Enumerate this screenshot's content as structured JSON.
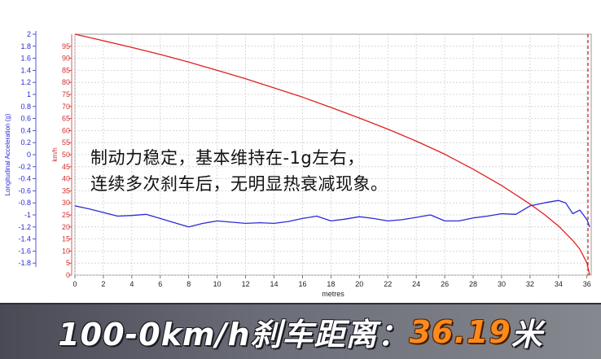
{
  "chart_data": {
    "type": "line",
    "xlabel": "metres",
    "xlim": [
      0,
      36.3
    ],
    "x_ticks": [
      0,
      2,
      4,
      6,
      8,
      10,
      12,
      14,
      16,
      18,
      20,
      22,
      24,
      26,
      28,
      30,
      32,
      34,
      36
    ],
    "left_axis": {
      "label": "Longitudinal Acceleration (g)",
      "ylim": [
        -2,
        2
      ],
      "ticks": [
        "2",
        "1.8",
        "1.6",
        "1.4",
        "1.2",
        "1",
        "0.8",
        "0.6",
        "0.4",
        "0.2",
        "0",
        "-0.2",
        "-0.4",
        "-0.6",
        "-0.8",
        "-1",
        "-1.2",
        "-1.4",
        "-1.6",
        "-1.8"
      ]
    },
    "right_axis": {
      "label": "km/h",
      "ylim": [
        0,
        100
      ],
      "ticks": [
        "95",
        "90",
        "85",
        "80",
        "75",
        "70",
        "65",
        "60",
        "55",
        "50",
        "45",
        "40",
        "35",
        "30",
        "25",
        "20",
        "15",
        "10",
        "5",
        "0"
      ]
    },
    "grid": true,
    "series": [
      {
        "axis": "right",
        "color": "#e02020",
        "x": [
          0,
          2,
          4,
          6,
          8,
          10,
          12,
          14,
          16,
          18,
          20,
          22,
          24,
          26,
          28,
          30,
          32,
          33,
          34,
          35,
          35.5,
          36,
          36.19
        ],
        "y": [
          100,
          97.3,
          94.5,
          91.6,
          88.4,
          85.0,
          81.5,
          77.7,
          73.9,
          69.6,
          65.2,
          60.6,
          55.6,
          50.2,
          44.0,
          37.2,
          29.5,
          25.2,
          20.4,
          14.4,
          10.8,
          5.0,
          0
        ]
      },
      {
        "axis": "left",
        "color": "#2b2bd6",
        "x": [
          0,
          1,
          2,
          3,
          4,
          5,
          6,
          7,
          8,
          9,
          10,
          11,
          12,
          13,
          14,
          15,
          16,
          17,
          18,
          19,
          20,
          21,
          22,
          23,
          24,
          25,
          26,
          27,
          28,
          29,
          30,
          31,
          32,
          33,
          34,
          34.5,
          35,
          35.5,
          36,
          36.19
        ],
        "y": [
          -0.85,
          -0.9,
          -0.96,
          -1.02,
          -1.01,
          -0.99,
          -1.06,
          -1.13,
          -1.2,
          -1.14,
          -1.1,
          -1.12,
          -1.14,
          -1.13,
          -1.14,
          -1.11,
          -1.06,
          -1.02,
          -1.1,
          -1.07,
          -1.03,
          -1.06,
          -1.1,
          -1.08,
          -1.04,
          -1.0,
          -1.1,
          -1.1,
          -1.05,
          -1.02,
          -0.98,
          -0.99,
          -0.85,
          -0.8,
          -0.76,
          -0.8,
          -0.98,
          -0.92,
          -1.08,
          -1.2
        ]
      }
    ]
  },
  "annotation": {
    "line1": "制动力稳定，基本维持在-1g左右，",
    "line2": "连续多次刹车后，无明显热衰减现象。"
  },
  "banner": {
    "label": "100-0km/h刹车距离：",
    "value": "36.19",
    "unit": "米"
  }
}
